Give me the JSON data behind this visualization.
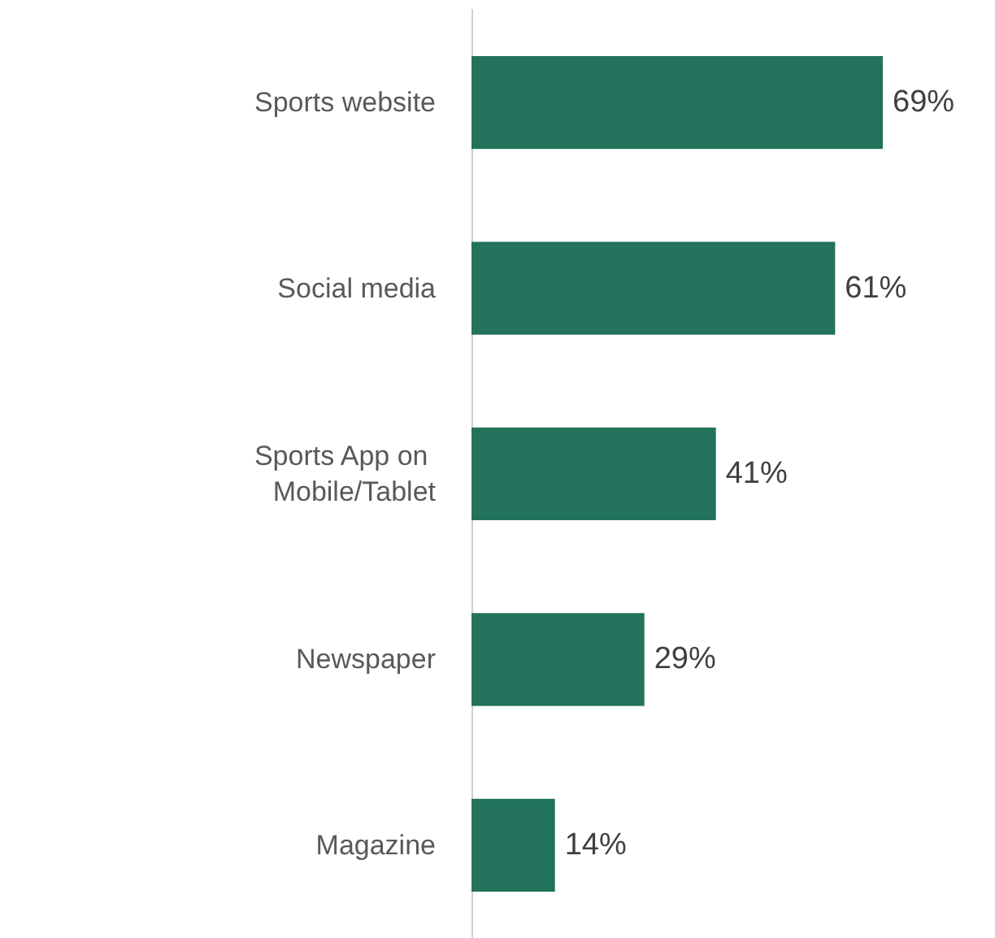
{
  "chart_data": {
    "type": "bar",
    "orientation": "horizontal",
    "categories": [
      "Sports website",
      "Social media",
      "Sports App on Mobile/Tablet",
      "Newspaper",
      "Magazine"
    ],
    "values": [
      69,
      61,
      41,
      29,
      14
    ],
    "color": "#22725c",
    "value_labels": [
      "69%",
      "61%",
      "41%",
      "29%",
      "14%"
    ]
  }
}
